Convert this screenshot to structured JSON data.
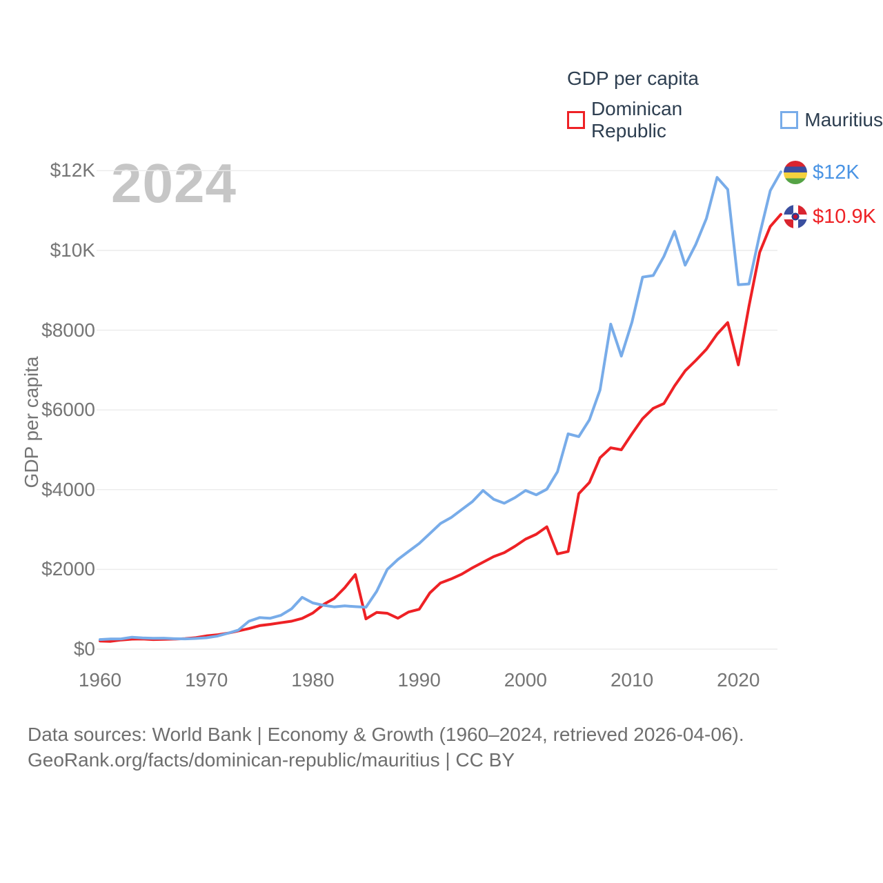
{
  "watermark": "2024",
  "legend": {
    "title": "GDP per capita",
    "items": [
      {
        "label": "Dominican Republic",
        "color": "#ee2125"
      },
      {
        "label": "Mauritius",
        "color": "#78ace9"
      }
    ]
  },
  "y_axis": {
    "title": "GDP per capita",
    "ticks": [
      "$0",
      "$2000",
      "$4000",
      "$6000",
      "$8000",
      "$10K",
      "$12K"
    ],
    "tick_values": [
      0,
      2000,
      4000,
      6000,
      8000,
      10000,
      12000
    ]
  },
  "x_axis": {
    "ticks": [
      "1960",
      "1970",
      "1980",
      "1990",
      "2000",
      "2010",
      "2020"
    ],
    "tick_values": [
      1960,
      1970,
      1980,
      1990,
      2000,
      2010,
      2020
    ]
  },
  "end_labels": [
    {
      "series": "Mauritius",
      "value": "$12K",
      "color": "#4a94e4",
      "flag": "mauritius-flag"
    },
    {
      "series": "Dominican Republic",
      "value": "$10.9K",
      "color": "#ee2125",
      "flag": "dominican-republic-flag"
    }
  ],
  "footer": {
    "line1": "Data sources: World Bank | Economy & Growth (1960–2024, retrieved 2026-04-06).",
    "line2": "GeoRank.org/facts/dominican-republic/mauritius | CC BY"
  },
  "chart_data": {
    "type": "line",
    "title": "GDP per capita",
    "xlabel": "",
    "ylabel": "GDP per capita",
    "xlim": [
      1960,
      2024
    ],
    "ylim": [
      0,
      12400
    ],
    "grid": "horizontal",
    "legend_position": "top-right",
    "x": [
      1960,
      1961,
      1962,
      1963,
      1964,
      1965,
      1966,
      1967,
      1968,
      1969,
      1970,
      1971,
      1972,
      1973,
      1974,
      1975,
      1976,
      1977,
      1978,
      1979,
      1980,
      1981,
      1982,
      1983,
      1984,
      1985,
      1986,
      1987,
      1988,
      1989,
      1990,
      1991,
      1992,
      1993,
      1994,
      1995,
      1996,
      1997,
      1998,
      1999,
      2000,
      2001,
      2002,
      2003,
      2004,
      2005,
      2006,
      2007,
      2008,
      2009,
      2010,
      2011,
      2012,
      2013,
      2014,
      2015,
      2016,
      2017,
      2018,
      2019,
      2020,
      2021,
      2022,
      2023,
      2024
    ],
    "series": [
      {
        "name": "Dominican Republic",
        "color": "#ee2125",
        "values": [
          205,
          195,
          230,
          250,
          255,
          240,
          245,
          252,
          263,
          288,
          332,
          358,
          400,
          456,
          515,
          590,
          622,
          662,
          700,
          772,
          905,
          1120,
          1270,
          1540,
          1870,
          760,
          920,
          900,
          775,
          930,
          1000,
          1410,
          1660,
          1760,
          1880,
          2040,
          2180,
          2320,
          2420,
          2580,
          2760,
          2880,
          3070,
          2390,
          2450,
          3900,
          4180,
          4800,
          5050,
          5000,
          5400,
          5780,
          6040,
          6160,
          6600,
          6980,
          7240,
          7520,
          7900,
          8190,
          7130,
          8600,
          9950,
          10600,
          10905
        ]
      },
      {
        "name": "Mauritius",
        "color": "#78ace9",
        "values": [
          240,
          255,
          258,
          300,
          280,
          272,
          275,
          262,
          258,
          268,
          285,
          325,
          398,
          478,
          700,
          790,
          775,
          850,
          1010,
          1300,
          1160,
          1100,
          1060,
          1085,
          1065,
          1050,
          1450,
          2000,
          2250,
          2450,
          2650,
          2900,
          3150,
          3300,
          3500,
          3700,
          3980,
          3760,
          3660,
          3800,
          3980,
          3870,
          4010,
          4450,
          5400,
          5330,
          5750,
          6500,
          8150,
          7350,
          8200,
          9330,
          9370,
          9850,
          10480,
          9630,
          10150,
          10800,
          11830,
          11530,
          9140,
          9160,
          10400,
          11500,
          11970
        ]
      }
    ]
  }
}
